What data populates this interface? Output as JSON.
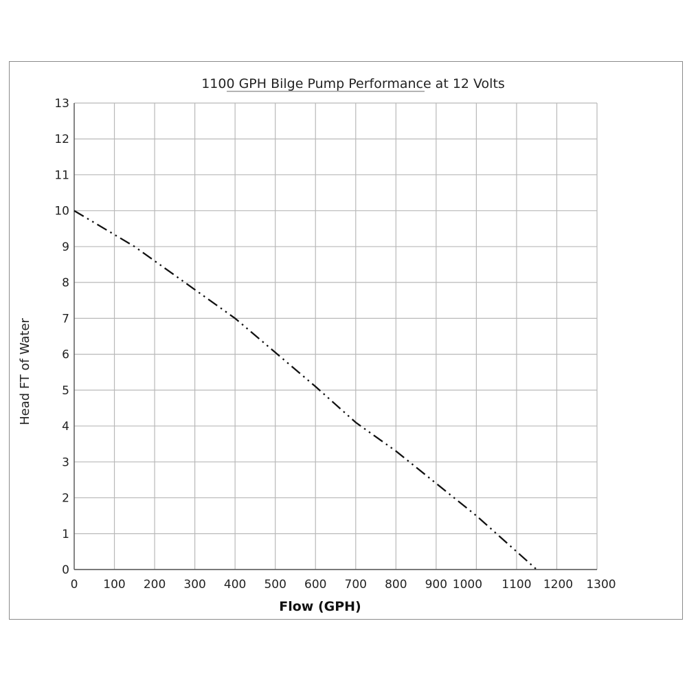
{
  "chart_data": {
    "type": "line",
    "title": "1100 GPH Bilge Pump Performance at 12 Volts",
    "xlabel": "Flow (GPH)",
    "ylabel": "Head FT of Water",
    "xlim": [
      0,
      1300
    ],
    "ylim": [
      0,
      13
    ],
    "xticks": [
      0,
      100,
      200,
      300,
      400,
      500,
      600,
      700,
      800,
      900,
      1000,
      1100,
      1200,
      1300
    ],
    "yticks": [
      0,
      1,
      2,
      3,
      4,
      5,
      6,
      7,
      8,
      9,
      10,
      11,
      12,
      13
    ],
    "grid": true,
    "line_style": "dash-dot-dot",
    "colors": {
      "line": "#111111",
      "grid": "#b8b8b8",
      "axis": "#555555"
    },
    "series": [
      {
        "x": [
          0,
          150,
          400,
          600,
          700,
          800,
          900,
          1000,
          1050,
          1150
        ],
        "y": [
          10,
          9,
          7,
          5.1,
          4.1,
          3.3,
          2.4,
          1.5,
          1.0,
          0
        ]
      }
    ]
  }
}
